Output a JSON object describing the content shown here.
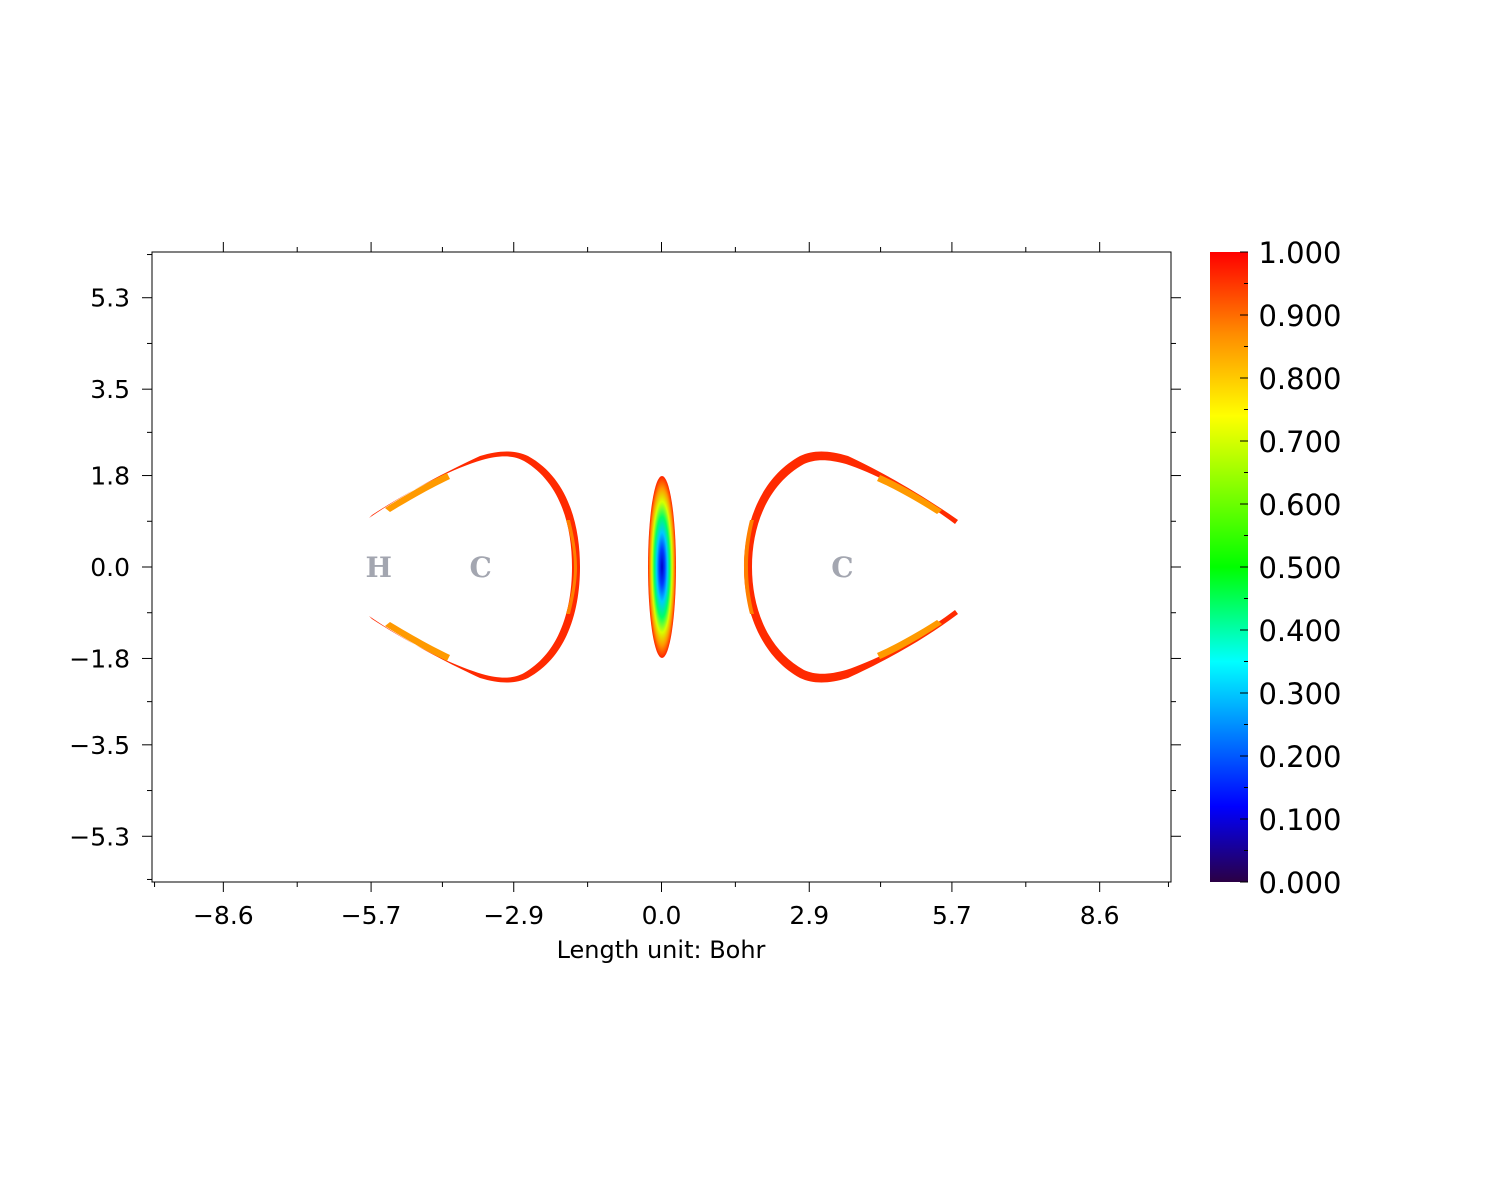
{
  "chart_data": {
    "type": "heatmap",
    "title": "",
    "xlabel": "Length unit: Bohr",
    "ylabel": "",
    "xlim": [
      -10.0,
      10.0
    ],
    "ylim": [
      -6.2,
      6.2
    ],
    "x_ticks": [
      "−8.6",
      "−5.7",
      "−2.9",
      "0.0",
      "2.9",
      "5.7",
      "8.6"
    ],
    "x_tick_values": [
      -8.6,
      -5.7,
      -2.9,
      0.0,
      2.9,
      5.7,
      8.6
    ],
    "y_ticks": [
      "5.3",
      "3.5",
      "1.8",
      "0.0",
      "−1.8",
      "−3.5",
      "−5.3"
    ],
    "y_tick_values": [
      5.3,
      3.5,
      1.8,
      0.0,
      -1.8,
      -3.5,
      -5.3
    ],
    "atoms": [
      {
        "label": "H",
        "x": -5.55,
        "y": 0.0
      },
      {
        "label": "C",
        "x": -3.55,
        "y": 0.0
      },
      {
        "label": "C",
        "x": 3.55,
        "y": 0.0
      }
    ],
    "colorbar": {
      "min": 0.0,
      "max": 1.0,
      "labels": [
        "1.000",
        "0.900",
        "0.800",
        "0.700",
        "0.600",
        "0.500",
        "0.400",
        "0.300",
        "0.200",
        "0.100",
        "0.000"
      ],
      "values": [
        1.0,
        0.9,
        0.8,
        0.7,
        0.6,
        0.5,
        0.4,
        0.3,
        0.2,
        0.1,
        0.0
      ],
      "colormap": "rainbow",
      "colors": [
        "#2b0044",
        "#0000ff",
        "#00ffff",
        "#00ff00",
        "#ffff00",
        "#ff7f00",
        "#ff0000"
      ]
    },
    "grid": false,
    "legend": "colorbar-right"
  }
}
